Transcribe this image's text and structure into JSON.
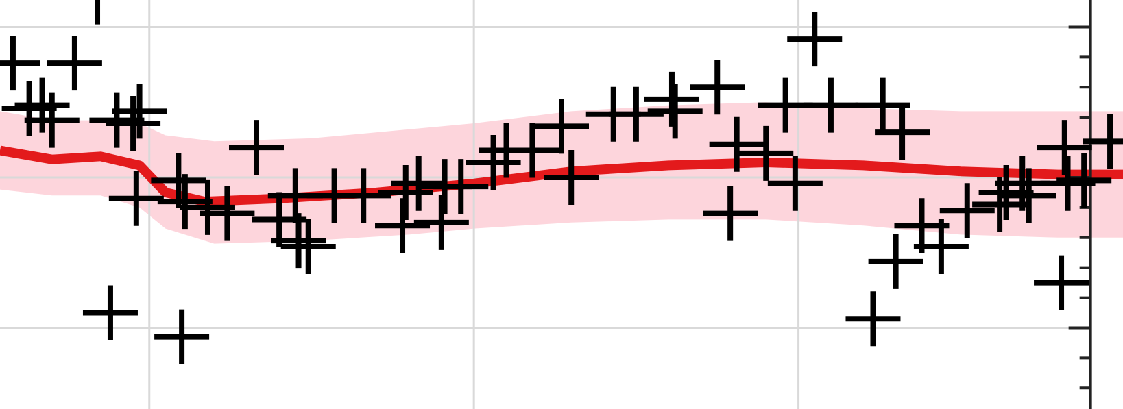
{
  "chart_data": {
    "type": "scatter",
    "title": "",
    "xlabel": "",
    "ylabel": "",
    "xlim": [
      -0.46,
      3.0
    ],
    "ylim": [
      -0.27,
      1.09
    ],
    "grid": true,
    "x_gridlines": [
      0,
      1,
      2
    ],
    "y_gridlines": [
      0,
      0.5,
      1
    ],
    "y_minor_ticks": [
      -0.2,
      -0.1,
      0.0,
      0.1,
      0.2,
      0.3,
      0.4,
      0.5,
      0.6,
      0.7,
      0.8,
      0.9,
      1.0
    ],
    "colors": {
      "points": "#000000",
      "trend": "#e31a1c",
      "band": "#fdd5dc",
      "grid": "#d9d9d9",
      "axis": "#222222"
    },
    "series": [
      {
        "type": "scatter",
        "marker": "plus",
        "points": [
          [
            -0.16,
            1.1
          ],
          [
            -0.42,
            0.88
          ],
          [
            -0.23,
            0.88
          ],
          [
            -0.37,
            0.73
          ],
          [
            -0.33,
            0.74
          ],
          [
            -0.3,
            0.69
          ],
          [
            -0.1,
            0.69
          ],
          [
            -0.03,
            0.72
          ],
          [
            -0.05,
            0.68
          ],
          [
            -0.04,
            0.43
          ],
          [
            0.11,
            0.42
          ],
          [
            0.18,
            0.4
          ],
          [
            0.24,
            0.38
          ],
          [
            0.33,
            0.6
          ],
          [
            0.4,
            0.36
          ],
          [
            0.46,
            0.29
          ],
          [
            0.57,
            0.44
          ],
          [
            0.66,
            0.44
          ],
          [
            0.79,
            0.45
          ],
          [
            0.91,
            0.47
          ],
          [
            0.83,
            0.48
          ],
          [
            0.49,
            0.27
          ],
          [
            0.45,
            0.44
          ],
          [
            0.78,
            0.34
          ],
          [
            0.9,
            0.35
          ],
          [
            0.96,
            0.47
          ],
          [
            1.1,
            0.59
          ],
          [
            1.18,
            0.59
          ],
          [
            1.27,
            0.67
          ],
          [
            1.06,
            0.55
          ],
          [
            1.43,
            0.71
          ],
          [
            1.3,
            0.5
          ],
          [
            1.5,
            0.71
          ],
          [
            1.61,
            0.76
          ],
          [
            1.62,
            0.72
          ],
          [
            1.75,
            0.8
          ],
          [
            1.81,
            0.61
          ],
          [
            1.9,
            0.58
          ],
          [
            1.79,
            0.38
          ],
          [
            1.99,
            0.48
          ],
          [
            1.96,
            0.74
          ],
          [
            2.05,
            0.96
          ],
          [
            2.1,
            0.74
          ],
          [
            2.26,
            0.74
          ],
          [
            2.32,
            0.65
          ],
          [
            2.38,
            0.34
          ],
          [
            2.44,
            0.27
          ],
          [
            2.3,
            0.22
          ],
          [
            2.23,
            0.03
          ],
          [
            2.52,
            0.39
          ],
          [
            2.62,
            0.41
          ],
          [
            2.64,
            0.45
          ],
          [
            2.69,
            0.48
          ],
          [
            2.71,
            0.44
          ],
          [
            2.82,
            0.6
          ],
          [
            2.83,
            0.48
          ],
          [
            2.88,
            0.49
          ],
          [
            2.96,
            0.62
          ],
          [
            2.81,
            0.15
          ],
          [
            0.1,
            -0.03
          ],
          [
            -0.12,
            0.05
          ],
          [
            0.09,
            0.49
          ]
        ]
      },
      {
        "type": "line",
        "points": [
          [
            -0.46,
            0.59
          ],
          [
            -0.3,
            0.56
          ],
          [
            -0.15,
            0.57
          ],
          [
            -0.03,
            0.54
          ],
          [
            0.05,
            0.45
          ],
          [
            0.17,
            0.42
          ],
          [
            0.4,
            0.43
          ],
          [
            0.7,
            0.45
          ],
          [
            1.0,
            0.48
          ],
          [
            1.3,
            0.52
          ],
          [
            1.6,
            0.54
          ],
          [
            1.9,
            0.55
          ],
          [
            2.2,
            0.54
          ],
          [
            2.5,
            0.52
          ],
          [
            2.8,
            0.51
          ],
          [
            3.0,
            0.51
          ]
        ]
      },
      {
        "type": "band",
        "upper": [
          [
            -0.46,
            0.72
          ],
          [
            -0.3,
            0.69
          ],
          [
            -0.15,
            0.69
          ],
          [
            -0.03,
            0.68
          ],
          [
            0.05,
            0.64
          ],
          [
            0.2,
            0.62
          ],
          [
            0.5,
            0.63
          ],
          [
            0.8,
            0.66
          ],
          [
            1.0,
            0.68
          ],
          [
            1.3,
            0.72
          ],
          [
            1.6,
            0.74
          ],
          [
            1.9,
            0.75
          ],
          [
            2.2,
            0.73
          ],
          [
            2.5,
            0.72
          ],
          [
            2.8,
            0.72
          ],
          [
            3.0,
            0.72
          ]
        ],
        "lower": [
          [
            -0.46,
            0.46
          ],
          [
            -0.3,
            0.44
          ],
          [
            -0.15,
            0.44
          ],
          [
            -0.03,
            0.4
          ],
          [
            0.05,
            0.33
          ],
          [
            0.2,
            0.28
          ],
          [
            0.5,
            0.29
          ],
          [
            0.8,
            0.31
          ],
          [
            1.0,
            0.33
          ],
          [
            1.3,
            0.35
          ],
          [
            1.6,
            0.36
          ],
          [
            1.9,
            0.36
          ],
          [
            2.2,
            0.34
          ],
          [
            2.5,
            0.31
          ],
          [
            2.8,
            0.3
          ],
          [
            3.0,
            0.3
          ]
        ]
      }
    ]
  }
}
